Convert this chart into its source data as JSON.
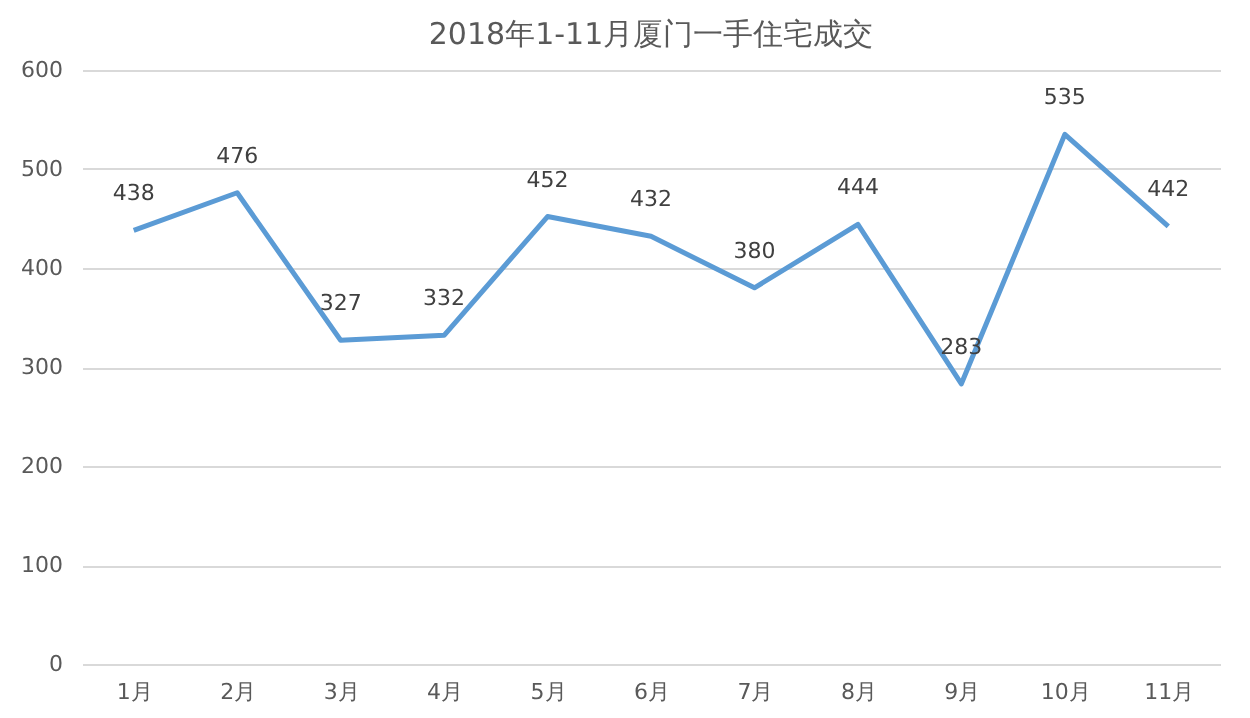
{
  "chart_data": {
    "type": "line",
    "title": "2018年1-11月厦门一手住宅成交",
    "categories": [
      "1月",
      "2月",
      "3月",
      "4月",
      "5月",
      "6月",
      "7月",
      "8月",
      "9月",
      "10月",
      "11月"
    ],
    "series": [
      {
        "color": "#5b9bd5",
        "values": [
          438,
          476,
          327,
          332,
          452,
          432,
          380,
          444,
          283,
          535,
          442
        ]
      }
    ],
    "ylim": [
      0,
      600
    ],
    "yticks": [
      0,
      100,
      200,
      300,
      400,
      500,
      600
    ],
    "grid": "y",
    "data_labels": true,
    "marker": "none",
    "line_style": "solid"
  }
}
